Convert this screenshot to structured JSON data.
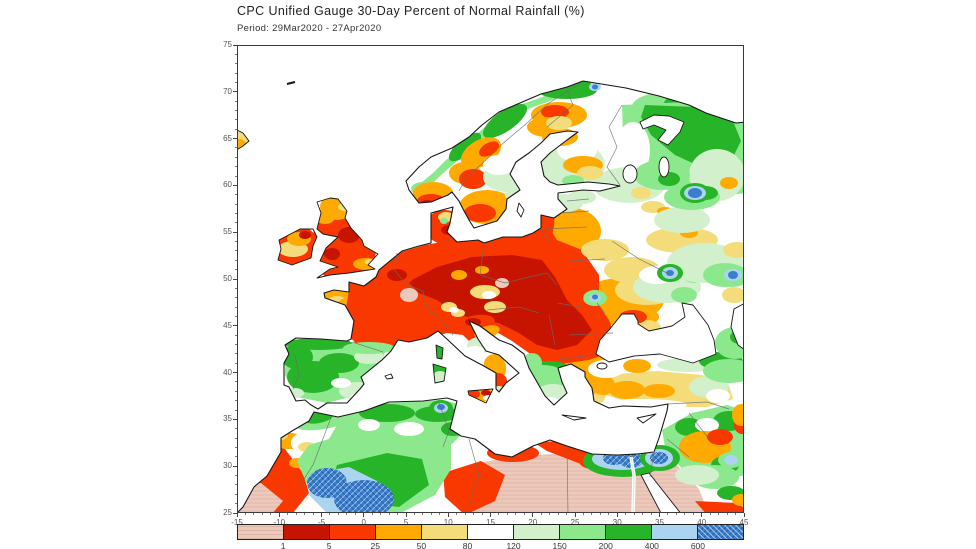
{
  "header": {
    "title": "CPC Unified Gauge 30-Day Percent of Normal Rainfall (%)",
    "period": "Period: 29Mar2020 - 27Apr2020"
  },
  "axes": {
    "lat_ticks": [
      "75",
      "70",
      "65",
      "60",
      "55",
      "50",
      "45",
      "40",
      "35",
      "30",
      "25"
    ],
    "lon_ticks": [
      "-15",
      "-10",
      "-5",
      "0",
      "5",
      "10",
      "15",
      "20",
      "25",
      "30",
      "35",
      "40",
      "45"
    ]
  },
  "colorbar": {
    "unit": "%",
    "labels": [
      "1",
      "5",
      "25",
      "50",
      "80",
      "120",
      "150",
      "200",
      "400",
      "600"
    ],
    "colors": [
      "#edc9bc",
      "#c61400",
      "#f93800",
      "#ffaa00",
      "#f4dc7a",
      "#ffffff",
      "#d2f0cc",
      "#8ce88c",
      "#28b428",
      "#aad4f0",
      "#3a7ecc"
    ],
    "first_cell_pattern": "horizontal-lines",
    "last_cell_pattern": "crosshatch"
  },
  "chart_data": {
    "type": "heatmap",
    "title": "CPC Unified Gauge 30-Day Percent of Normal Rainfall (%)",
    "period": "29Mar2020 - 27Apr2020",
    "lon_range": [
      -15,
      45
    ],
    "lat_range": [
      25,
      75
    ],
    "grid": false,
    "scale_boundaries": [
      1,
      5,
      25,
      50,
      80,
      120,
      150,
      200,
      400,
      600
    ],
    "scale_colors": [
      "#edc9bc",
      "#c61400",
      "#f93800",
      "#ffaa00",
      "#f4dc7a",
      "#ffffff",
      "#d2f0cc",
      "#8ce88c",
      "#28b428",
      "#aad4f0",
      "#3a7ecc"
    ],
    "scale_ranges": [
      "<1",
      "1-5",
      "5-25",
      "25-50",
      "50-80",
      "80-120",
      "120-150",
      "150-200",
      "200-400",
      "400-600",
      ">600"
    ],
    "notable_regions": {
      "very_dry_red": [
        "United Kingdom",
        "Ireland",
        "Germany",
        "Poland",
        "Czechia",
        "Hungary",
        "Romania",
        "Balkans",
        "Denmark",
        "southern Morocco",
        "Libyan coast"
      ],
      "near_normal_white": [
        "Finland",
        "central Russia",
        "Mediterranean coastlines"
      ],
      "wet_green": [
        "Spain",
        "Portugal",
        "Norway coast",
        "northwest Russia",
        "Algeria",
        "Syria/Iraq",
        "Caucasus",
        "northern Greece"
      ],
      "extreme_wet_blue_over_600": [
        "central Algeria Sahara",
        "Tunisia spot",
        "Nile delta coast",
        "Israel coast",
        "Vologda Russia spot"
      ]
    }
  }
}
